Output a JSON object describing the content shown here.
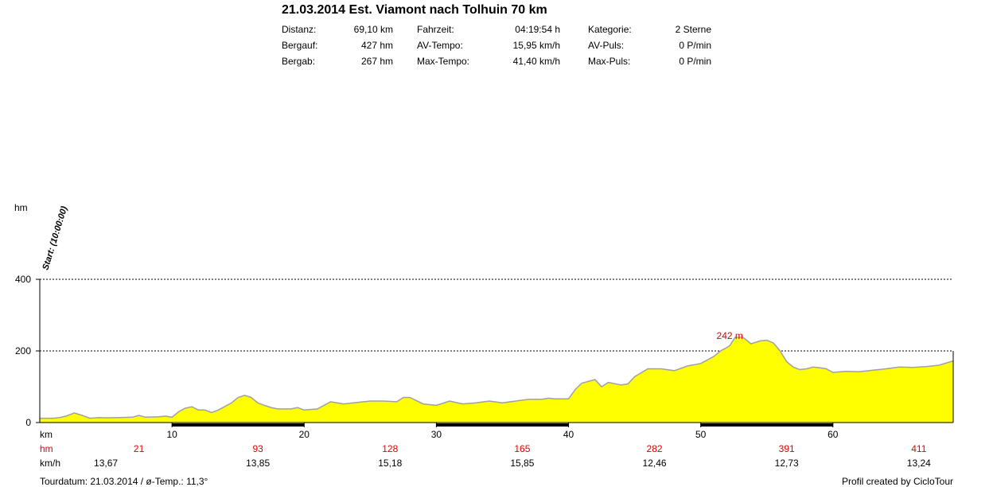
{
  "header": {
    "title": "21.03.2014 Est. Viamont nach Tolhuin 70 km",
    "stats_columns": [
      [
        {
          "label": "Distanz:",
          "value": "69,10 km"
        },
        {
          "label": "Bergauf:",
          "value": "427 hm"
        },
        {
          "label": "Bergab:",
          "value": "267 hm"
        }
      ],
      [
        {
          "label": "Fahrzeit:",
          "value": "04:19:54 h"
        },
        {
          "label": "AV-Tempo:",
          "value": "15,95 km/h"
        },
        {
          "label": "Max-Tempo:",
          "value": "41,40 km/h"
        }
      ],
      [
        {
          "label": "Kategorie:",
          "value": "2 Sterne"
        },
        {
          "label": "AV-Puls:",
          "value": "0 P/min"
        },
        {
          "label": "Max-Puls:",
          "value": "0 P/min"
        }
      ]
    ]
  },
  "chart_data": {
    "type": "area",
    "ylabel": "hm",
    "xlabel": "km",
    "xlim": [
      0,
      69.1
    ],
    "ylim": [
      0,
      400
    ],
    "y_ticks": [
      0,
      200,
      400
    ],
    "x_ticks": [
      10,
      20,
      30,
      40,
      50,
      60
    ],
    "dashed_gridlines": [
      200,
      400
    ],
    "start_marker": "Start: (10:00:00)",
    "max_label": {
      "text": "242 m",
      "x": 52.2,
      "y": 242
    },
    "colors": {
      "fill": "#ffff00",
      "stroke": "#a0a0a0",
      "red": "#e00000"
    },
    "profile": [
      [
        0,
        12
      ],
      [
        1,
        12
      ],
      [
        1.5,
        14
      ],
      [
        2,
        18
      ],
      [
        2.6,
        27
      ],
      [
        3.2,
        20
      ],
      [
        3.8,
        12
      ],
      [
        4.5,
        14
      ],
      [
        5,
        13
      ],
      [
        6,
        14
      ],
      [
        7,
        15
      ],
      [
        7.5,
        20
      ],
      [
        8,
        15
      ],
      [
        9,
        16
      ],
      [
        9.5,
        18
      ],
      [
        10,
        15
      ],
      [
        10.5,
        30
      ],
      [
        11,
        40
      ],
      [
        11.5,
        44
      ],
      [
        12,
        35
      ],
      [
        12.5,
        35
      ],
      [
        13,
        28
      ],
      [
        13.5,
        35
      ],
      [
        14,
        45
      ],
      [
        14.5,
        55
      ],
      [
        15,
        70
      ],
      [
        15.5,
        76
      ],
      [
        16,
        70
      ],
      [
        16.5,
        55
      ],
      [
        17,
        48
      ],
      [
        17.5,
        42
      ],
      [
        18,
        38
      ],
      [
        19,
        38
      ],
      [
        19.5,
        42
      ],
      [
        20,
        35
      ],
      [
        21,
        38
      ],
      [
        22,
        58
      ],
      [
        22.5,
        55
      ],
      [
        23,
        52
      ],
      [
        24,
        56
      ],
      [
        25,
        60
      ],
      [
        26,
        60
      ],
      [
        27,
        58
      ],
      [
        27.5,
        70
      ],
      [
        28,
        70
      ],
      [
        29,
        52
      ],
      [
        30,
        48
      ],
      [
        31,
        60
      ],
      [
        32,
        52
      ],
      [
        33,
        55
      ],
      [
        34,
        60
      ],
      [
        35,
        55
      ],
      [
        36,
        60
      ],
      [
        37,
        65
      ],
      [
        38,
        65
      ],
      [
        38.5,
        68
      ],
      [
        39,
        66
      ],
      [
        40,
        66
      ],
      [
        40.5,
        92
      ],
      [
        41,
        110
      ],
      [
        42,
        120
      ],
      [
        42.5,
        100
      ],
      [
        43,
        112
      ],
      [
        44,
        105
      ],
      [
        44.5,
        108
      ],
      [
        45,
        128
      ],
      [
        46,
        150
      ],
      [
        47,
        150
      ],
      [
        48,
        145
      ],
      [
        49,
        158
      ],
      [
        50,
        165
      ],
      [
        51,
        185
      ],
      [
        51.5,
        200
      ],
      [
        52,
        210
      ],
      [
        52.2,
        215
      ],
      [
        52.6,
        238
      ],
      [
        53.2,
        238
      ],
      [
        53.8,
        220
      ],
      [
        54.5,
        228
      ],
      [
        55,
        230
      ],
      [
        55.5,
        222
      ],
      [
        56,
        200
      ],
      [
        56.5,
        170
      ],
      [
        57,
        155
      ],
      [
        57.5,
        148
      ],
      [
        58,
        150
      ],
      [
        58.5,
        155
      ],
      [
        59,
        153
      ],
      [
        59.5,
        150
      ],
      [
        60,
        140
      ],
      [
        61,
        143
      ],
      [
        62,
        142
      ],
      [
        63,
        146
      ],
      [
        64,
        150
      ],
      [
        65,
        155
      ],
      [
        66,
        154
      ],
      [
        67,
        156
      ],
      [
        68,
        160
      ],
      [
        69.1,
        172
      ]
    ],
    "hm_row": {
      "label": "hm",
      "items": [
        {
          "x": 7.5,
          "text": "21"
        },
        {
          "x": 16.5,
          "text": "93"
        },
        {
          "x": 26.5,
          "text": "128"
        },
        {
          "x": 36.5,
          "text": "165"
        },
        {
          "x": 46.5,
          "text": "282"
        },
        {
          "x": 56.5,
          "text": "391"
        },
        {
          "x": 66.5,
          "text": "411"
        }
      ]
    },
    "speed_row": {
      "label": "km/h",
      "items": [
        {
          "x": 5,
          "text": "13,67"
        },
        {
          "x": 16.5,
          "text": "13,85"
        },
        {
          "x": 26.5,
          "text": "15,18"
        },
        {
          "x": 36.5,
          "text": "15,85"
        },
        {
          "x": 46.5,
          "text": "12,46"
        },
        {
          "x": 56.5,
          "text": "12,73"
        },
        {
          "x": 66.5,
          "text": "13,24"
        }
      ]
    },
    "bold_axis_segments": [
      [
        10,
        20
      ],
      [
        30,
        40
      ],
      [
        50,
        60
      ]
    ]
  },
  "footer": {
    "left": "Tourdatum: 21.03.2014  /  ø-Temp.: 11,3°",
    "right": "Profil created by CicloTour"
  }
}
